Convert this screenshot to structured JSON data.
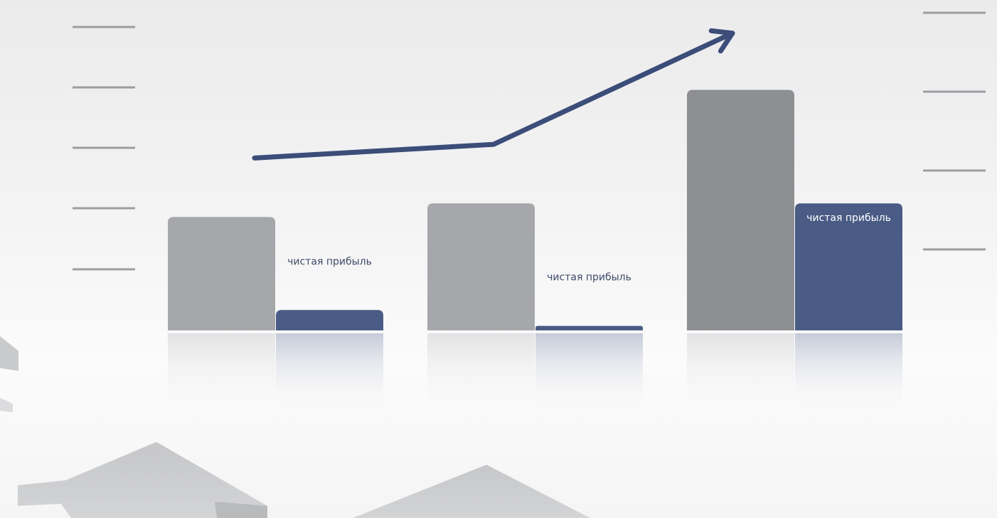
{
  "chart_data": {
    "type": "bar",
    "categories": [
      "",
      "",
      ""
    ],
    "series": [
      {
        "values": [
          50,
          56,
          106
        ],
        "color": "#a6a7aa"
      },
      {
        "values": [
          9,
          2,
          56
        ],
        "color": "#4a5b85"
      }
    ],
    "value_labels": [
      "чистая прибыль",
      "чистая прибыль",
      "чистая прибыль"
    ],
    "trend": {
      "values": [
        76,
        82,
        131
      ],
      "color": "#3b4d78",
      "arrow": true
    },
    "ylim": [
      0,
      140
    ],
    "ticks": {
      "left_count": 5,
      "right_count": 5
    },
    "title": "",
    "xlabel": "",
    "ylabel": "",
    "grid": false,
    "legend": "none"
  },
  "colors": {
    "bar_gray_light": "#a6a7aa",
    "bar_gray_dark": "#8e8f92",
    "bar_blue": "#4a5b85",
    "arrow": "#3b4d78",
    "tick": "#9c9da0",
    "label_dark": "#3e4a66",
    "label_light": "#ffffff",
    "decor_arrows": "#cfd0d2"
  }
}
